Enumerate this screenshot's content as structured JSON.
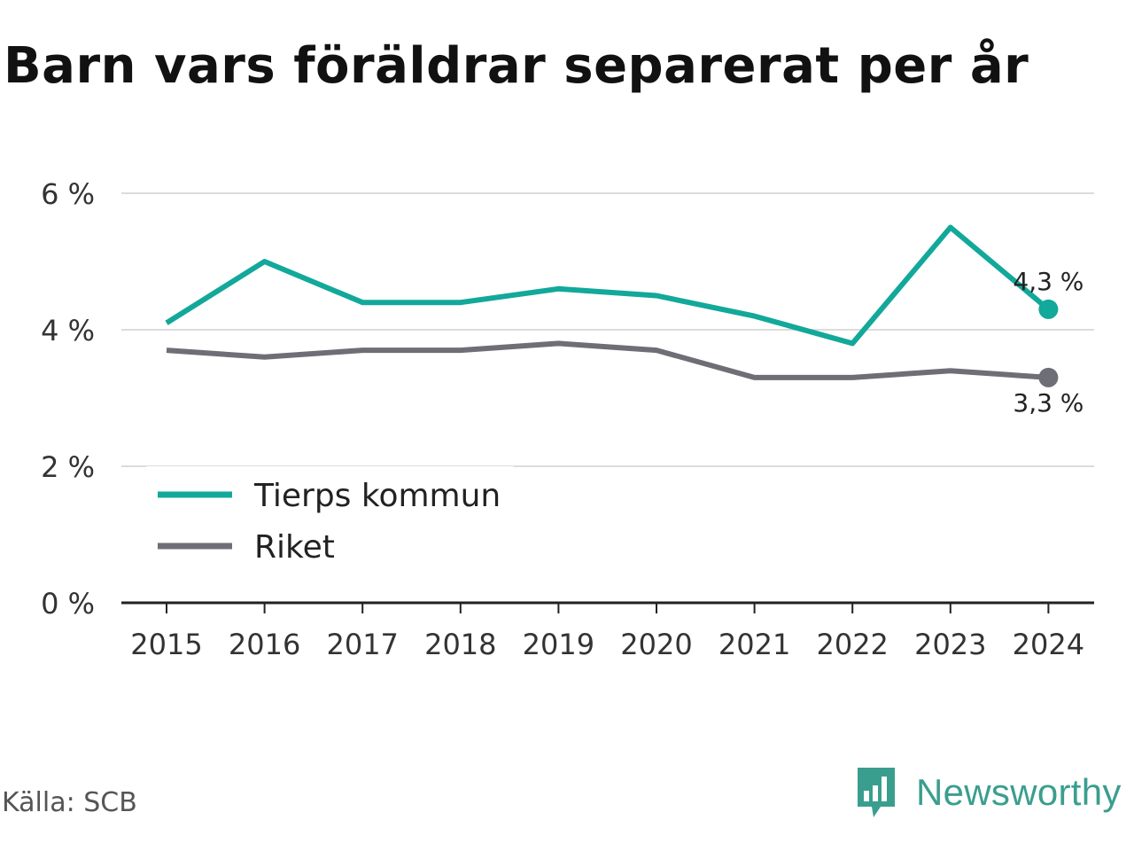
{
  "title": "Barn vars föräldrar separerat per år",
  "source": "Källa: SCB",
  "brand": {
    "name": "Newsworthy",
    "icon": "newsworthy-logo-icon",
    "color": "#3a9e8f"
  },
  "chart_data": {
    "type": "line",
    "x": [
      "2015",
      "2016",
      "2017",
      "2018",
      "2019",
      "2020",
      "2021",
      "2022",
      "2023",
      "2024"
    ],
    "series": [
      {
        "name": "Tierps kommun",
        "color": "#12a89a",
        "values": [
          4.1,
          5.0,
          4.4,
          4.4,
          4.6,
          4.5,
          4.2,
          3.8,
          5.5,
          4.3
        ],
        "end_label": "4,3 %"
      },
      {
        "name": "Riket",
        "color": "#6e6e76",
        "values": [
          3.7,
          3.6,
          3.7,
          3.7,
          3.8,
          3.7,
          3.3,
          3.3,
          3.4,
          3.3
        ],
        "end_label": "3,3 %"
      }
    ],
    "y_ticks": [
      0,
      2,
      4,
      6
    ],
    "y_tick_labels": [
      "0 %",
      "2 %",
      "4 %",
      "6 %"
    ],
    "ylim": [
      0,
      6
    ],
    "grid": true,
    "legend_position": "bottom-left"
  }
}
